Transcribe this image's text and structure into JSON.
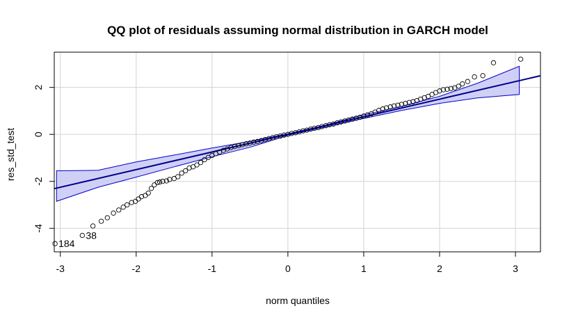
{
  "chart_data": {
    "type": "scatter",
    "title": "QQ plot of residuals assuming normal distribution in GARCH model",
    "xlabel": "norm quantiles",
    "ylabel": "res_std_test",
    "xlim": [
      -3.08,
      3.33
    ],
    "ylim": [
      -5.0,
      3.5
    ],
    "xticks": [
      -3,
      -2,
      -1,
      0,
      1,
      2,
      3
    ],
    "yticks": [
      -4,
      -2,
      0,
      2
    ],
    "grid": true,
    "colors": {
      "points": "#000000",
      "reference_line": "#00008B",
      "band_fill": "#C8C8F5",
      "band_stroke": "#0000CD",
      "grid": "#D3D3D3"
    },
    "reference_line": {
      "intercept": 0.0,
      "slope": 0.75
    },
    "confidence_band": {
      "x": [
        -3.05,
        -2.5,
        -2.0,
        -1.5,
        -1.0,
        -0.5,
        0.0,
        0.5,
        1.0,
        1.5,
        2.0,
        2.5,
        3.05
      ],
      "upper": [
        -1.55,
        -1.53,
        -1.17,
        -0.88,
        -0.58,
        -0.3,
        0.03,
        0.4,
        0.83,
        1.2,
        1.62,
        2.18,
        2.9
      ],
      "lower": [
        -2.85,
        -2.25,
        -1.82,
        -1.38,
        -0.95,
        -0.55,
        -0.04,
        0.32,
        0.68,
        1.02,
        1.32,
        1.55,
        1.7
      ]
    },
    "points": [
      [
        -3.07,
        -4.65
      ],
      [
        -2.71,
        -4.3
      ],
      [
        -2.57,
        -3.9
      ],
      [
        -2.46,
        -3.7
      ],
      [
        -2.38,
        -3.55
      ],
      [
        -2.3,
        -3.35
      ],
      [
        -2.23,
        -3.22
      ],
      [
        -2.17,
        -3.1
      ],
      [
        -2.12,
        -3.0
      ],
      [
        -2.06,
        -2.9
      ],
      [
        -2.01,
        -2.85
      ],
      [
        -1.97,
        -2.75
      ],
      [
        -1.93,
        -2.65
      ],
      [
        -1.88,
        -2.6
      ],
      [
        -1.84,
        -2.5
      ],
      [
        -1.8,
        -2.3
      ],
      [
        -1.76,
        -2.15
      ],
      [
        -1.72,
        -2.05
      ],
      [
        -1.69,
        -2.03
      ],
      [
        -1.65,
        -2.0
      ],
      [
        -1.6,
        -1.98
      ],
      [
        -1.56,
        -1.92
      ],
      [
        -1.5,
        -1.88
      ],
      [
        -1.45,
        -1.8
      ],
      [
        -1.4,
        -1.65
      ],
      [
        -1.35,
        -1.55
      ],
      [
        -1.3,
        -1.43
      ],
      [
        -1.25,
        -1.38
      ],
      [
        -1.2,
        -1.3
      ],
      [
        -1.15,
        -1.2
      ],
      [
        -1.1,
        -1.08
      ],
      [
        -1.05,
        -0.98
      ],
      [
        -1.0,
        -0.9
      ],
      [
        -0.95,
        -0.82
      ],
      [
        -0.9,
        -0.75
      ],
      [
        -0.85,
        -0.68
      ],
      [
        -0.8,
        -0.62
      ],
      [
        -0.75,
        -0.56
      ],
      [
        -0.7,
        -0.52
      ],
      [
        -0.65,
        -0.48
      ],
      [
        -0.6,
        -0.44
      ],
      [
        -0.55,
        -0.4
      ],
      [
        -0.5,
        -0.37
      ],
      [
        -0.45,
        -0.33
      ],
      [
        -0.4,
        -0.3
      ],
      [
        -0.35,
        -0.26
      ],
      [
        -0.3,
        -0.22
      ],
      [
        -0.25,
        -0.18
      ],
      [
        -0.2,
        -0.14
      ],
      [
        -0.15,
        -0.1
      ],
      [
        -0.1,
        -0.07
      ],
      [
        -0.05,
        -0.03
      ],
      [
        0.0,
        0.0
      ],
      [
        0.05,
        0.04
      ],
      [
        0.1,
        0.07
      ],
      [
        0.15,
        0.11
      ],
      [
        0.2,
        0.15
      ],
      [
        0.25,
        0.18
      ],
      [
        0.3,
        0.22
      ],
      [
        0.35,
        0.26
      ],
      [
        0.4,
        0.29
      ],
      [
        0.45,
        0.33
      ],
      [
        0.5,
        0.37
      ],
      [
        0.55,
        0.41
      ],
      [
        0.6,
        0.44
      ],
      [
        0.65,
        0.49
      ],
      [
        0.7,
        0.53
      ],
      [
        0.75,
        0.57
      ],
      [
        0.8,
        0.61
      ],
      [
        0.85,
        0.65
      ],
      [
        0.9,
        0.69
      ],
      [
        0.95,
        0.73
      ],
      [
        1.0,
        0.78
      ],
      [
        1.05,
        0.83
      ],
      [
        1.1,
        0.88
      ],
      [
        1.15,
        0.95
      ],
      [
        1.2,
        1.02
      ],
      [
        1.25,
        1.08
      ],
      [
        1.3,
        1.13
      ],
      [
        1.35,
        1.17
      ],
      [
        1.4,
        1.21
      ],
      [
        1.45,
        1.24
      ],
      [
        1.5,
        1.28
      ],
      [
        1.55,
        1.32
      ],
      [
        1.6,
        1.36
      ],
      [
        1.65,
        1.39
      ],
      [
        1.7,
        1.44
      ],
      [
        1.75,
        1.5
      ],
      [
        1.8,
        1.56
      ],
      [
        1.85,
        1.62
      ],
      [
        1.9,
        1.7
      ],
      [
        1.95,
        1.78
      ],
      [
        2.0,
        1.85
      ],
      [
        2.05,
        1.9
      ],
      [
        2.1,
        1.92
      ],
      [
        2.15,
        1.95
      ],
      [
        2.2,
        1.98
      ],
      [
        2.25,
        2.05
      ],
      [
        2.3,
        2.15
      ],
      [
        2.37,
        2.25
      ],
      [
        2.46,
        2.45
      ],
      [
        2.57,
        2.5
      ],
      [
        2.71,
        3.05
      ],
      [
        3.07,
        3.2
      ]
    ],
    "point_labels": [
      {
        "text": "184",
        "x": -3.07,
        "y": -4.65
      },
      {
        "text": "38",
        "x": -2.71,
        "y": -4.3
      }
    ]
  }
}
